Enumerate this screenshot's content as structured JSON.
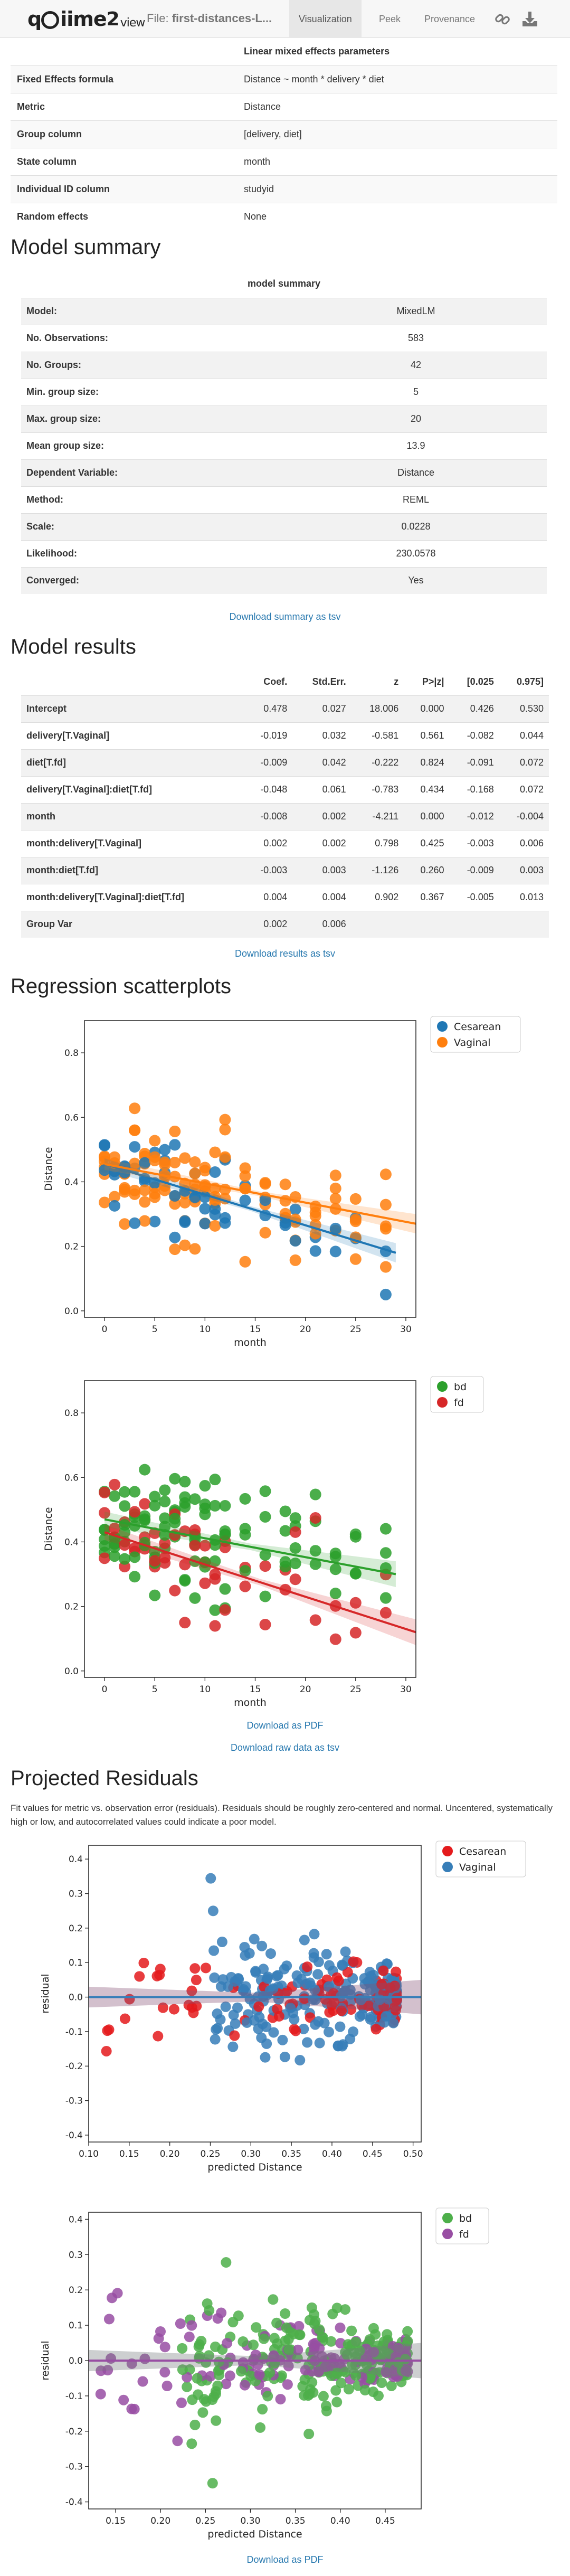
{
  "navbar": {
    "brand": "qiime2view",
    "brand_parts": [
      "q",
      "iime",
      "2",
      "view"
    ],
    "file_prefix": "File:",
    "file_name": "first-distances-L...",
    "tabs": [
      "Visualization",
      "Peek",
      "Provenance"
    ],
    "active_tab": "Visualization",
    "icons": [
      "link-icon",
      "download-icon"
    ]
  },
  "params": {
    "title": "Linear mixed effects parameters",
    "rows": [
      {
        "k": "Fixed Effects formula",
        "v": "Distance ~ month * delivery * diet"
      },
      {
        "k": "Metric",
        "v": "Distance"
      },
      {
        "k": "Group column",
        "v": "[delivery, diet]"
      },
      {
        "k": "State column",
        "v": "month"
      },
      {
        "k": "Individual ID column",
        "v": "studyid"
      },
      {
        "k": "Random effects",
        "v": "None"
      }
    ]
  },
  "summary": {
    "heading": "Model summary",
    "table_title": "model summary",
    "rows": [
      {
        "k": "Model:",
        "v": "MixedLM"
      },
      {
        "k": "No. Observations:",
        "v": "583"
      },
      {
        "k": "No. Groups:",
        "v": "42"
      },
      {
        "k": "Min. group size:",
        "v": "5"
      },
      {
        "k": "Max. group size:",
        "v": "20"
      },
      {
        "k": "Mean group size:",
        "v": "13.9"
      },
      {
        "k": "Dependent Variable:",
        "v": "Distance"
      },
      {
        "k": "Method:",
        "v": "REML"
      },
      {
        "k": "Scale:",
        "v": "0.0228"
      },
      {
        "k": "Likelihood:",
        "v": "230.0578"
      },
      {
        "k": "Converged:",
        "v": "Yes"
      }
    ],
    "download": "Download summary as tsv"
  },
  "results": {
    "heading": "Model results",
    "columns": [
      "",
      "Coef.",
      "Std.Err.",
      "z",
      "P>|z|",
      "[0.025",
      "0.975]"
    ],
    "rows": [
      [
        "Intercept",
        "0.478",
        "0.027",
        "18.006",
        "0.000",
        "0.426",
        "0.530"
      ],
      [
        "delivery[T.Vaginal]",
        "-0.019",
        "0.032",
        "-0.581",
        "0.561",
        "-0.082",
        "0.044"
      ],
      [
        "diet[T.fd]",
        "-0.009",
        "0.042",
        "-0.222",
        "0.824",
        "-0.091",
        "0.072"
      ],
      [
        "delivery[T.Vaginal]:diet[T.fd]",
        "-0.048",
        "0.061",
        "-0.783",
        "0.434",
        "-0.168",
        "0.072"
      ],
      [
        "month",
        "-0.008",
        "0.002",
        "-4.211",
        "0.000",
        "-0.012",
        "-0.004"
      ],
      [
        "month:delivery[T.Vaginal]",
        "0.002",
        "0.002",
        "0.798",
        "0.425",
        "-0.003",
        "0.006"
      ],
      [
        "month:diet[T.fd]",
        "-0.003",
        "0.003",
        "-1.126",
        "0.260",
        "-0.009",
        "0.003"
      ],
      [
        "month:delivery[T.Vaginal]:diet[T.fd]",
        "0.004",
        "0.004",
        "0.902",
        "0.367",
        "-0.005",
        "0.013"
      ],
      [
        "Group Var",
        "0.002",
        "0.006",
        "",
        "",
        "",
        ""
      ]
    ],
    "download": "Download results as tsv"
  },
  "scatter": {
    "heading": "Regression scatterplots",
    "download_pdf": "Download as PDF",
    "download_tsv": "Download raw data as tsv"
  },
  "residuals": {
    "heading": "Projected Residuals",
    "description": "Fit values for metric vs. observation error (residuals). Residuals should be roughly zero-centered and normal. Uncentered, systematically high or low, and autocorrelated values could indicate a poor model.",
    "download_pdf": "Download as PDF"
  },
  "colors": {
    "blue": "#1f77b4",
    "orange": "#ff7f0e",
    "green": "#2ca02c",
    "red": "#d62728",
    "purple": "#9467bd",
    "link": "#2a7ab0",
    "resid_red": "#e41a1c",
    "resid_blue": "#377eb8",
    "resid_green": "#4daf4a",
    "resid_purple": "#984ea3"
  },
  "chart_data": [
    {
      "type": "scatter",
      "title": "",
      "xlabel": "month",
      "ylabel": "Distance",
      "xlim": [
        -2,
        31
      ],
      "ylim": [
        -0.02,
        0.9
      ],
      "xticks": [
        "0",
        "5",
        "10",
        "15",
        "20",
        "25",
        "30"
      ],
      "yticks": [
        "0.0",
        "0.2",
        "0.4",
        "0.6",
        "0.8"
      ],
      "xtick_values": [
        0,
        5,
        10,
        15,
        20,
        25,
        30
      ],
      "ytick_values": [
        0,
        0.2,
        0.4,
        0.6,
        0.8
      ],
      "legend": [
        "Cesarean",
        "Vaginal"
      ],
      "series": [
        {
          "name": "Cesarean",
          "color": "#1f77b4",
          "fit": [
            [
              0,
              0.455
            ],
            [
              29,
              0.18
            ]
          ]
        },
        {
          "name": "Vaginal",
          "color": "#ff7f0e",
          "fit": [
            [
              0,
              0.455
            ],
            [
              31,
              0.27
            ]
          ]
        }
      ],
      "months": [
        0,
        1,
        2,
        3,
        4,
        5,
        6,
        7,
        8,
        9,
        10,
        11,
        12,
        14,
        16,
        18,
        19,
        21,
        23,
        25,
        28
      ]
    },
    {
      "type": "scatter",
      "title": "",
      "xlabel": "month",
      "ylabel": "Distance",
      "xlim": [
        -2,
        31
      ],
      "ylim": [
        -0.02,
        0.9
      ],
      "xticks": [
        "0",
        "5",
        "10",
        "15",
        "20",
        "25",
        "30"
      ],
      "yticks": [
        "0.0",
        "0.2",
        "0.4",
        "0.6",
        "0.8"
      ],
      "xtick_values": [
        0,
        5,
        10,
        15,
        20,
        25,
        30
      ],
      "ytick_values": [
        0,
        0.2,
        0.4,
        0.6,
        0.8
      ],
      "legend": [
        "bd",
        "fd"
      ],
      "series": [
        {
          "name": "bd",
          "color": "#2ca02c",
          "fit": [
            [
              0,
              0.47
            ],
            [
              29,
              0.3
            ]
          ]
        },
        {
          "name": "fd",
          "color": "#d62728",
          "fit": [
            [
              0,
              0.43
            ],
            [
              31,
              0.12
            ]
          ]
        }
      ],
      "months": [
        0,
        1,
        2,
        3,
        4,
        5,
        6,
        7,
        8,
        9,
        10,
        11,
        12,
        14,
        16,
        18,
        19,
        21,
        23,
        25,
        28
      ]
    },
    {
      "type": "scatter",
      "title": "",
      "xlabel": "predicted Distance",
      "ylabel": "residual",
      "xlim": [
        0.1,
        0.51
      ],
      "ylim": [
        -0.42,
        0.44
      ],
      "xticks": [
        "0.10",
        "0.15",
        "0.20",
        "0.25",
        "0.30",
        "0.35",
        "0.40",
        "0.45",
        "0.50"
      ],
      "yticks": [
        "-0.4",
        "-0.3",
        "-0.2",
        "-0.1",
        "0.0",
        "0.1",
        "0.2",
        "0.3",
        "0.4"
      ],
      "xtick_values": [
        0.1,
        0.15,
        0.2,
        0.25,
        0.3,
        0.35,
        0.4,
        0.45,
        0.5
      ],
      "ytick_values": [
        -0.4,
        -0.3,
        -0.2,
        -0.1,
        0,
        0.1,
        0.2,
        0.3,
        0.4
      ],
      "legend": [
        "Cesarean",
        "Vaginal"
      ],
      "series": [
        {
          "name": "Cesarean",
          "color": "#e41a1c",
          "fit": [
            [
              0.1,
              0.0
            ],
            [
              0.51,
              0.0
            ]
          ]
        },
        {
          "name": "Vaginal",
          "color": "#377eb8",
          "fit": [
            [
              0.1,
              0.0
            ],
            [
              0.51,
              0.0
            ]
          ]
        }
      ]
    },
    {
      "type": "scatter",
      "title": "",
      "xlabel": "predicted Distance",
      "ylabel": "residual",
      "xlim": [
        0.12,
        0.49
      ],
      "ylim": [
        -0.42,
        0.42
      ],
      "xticks": [
        "0.15",
        "0.20",
        "0.25",
        "0.30",
        "0.35",
        "0.40",
        "0.45"
      ],
      "yticks": [
        "-0.4",
        "-0.3",
        "-0.2",
        "-0.1",
        "0.0",
        "0.1",
        "0.2",
        "0.3",
        "0.4"
      ],
      "xtick_values": [
        0.15,
        0.2,
        0.25,
        0.3,
        0.35,
        0.4,
        0.45
      ],
      "ytick_values": [
        -0.4,
        -0.3,
        -0.2,
        -0.1,
        0,
        0.1,
        0.2,
        0.3,
        0.4
      ],
      "legend": [
        "bd",
        "fd"
      ],
      "series": [
        {
          "name": "bd",
          "color": "#4daf4a",
          "fit": [
            [
              0.12,
              0.0
            ],
            [
              0.49,
              0.0
            ]
          ]
        },
        {
          "name": "fd",
          "color": "#984ea3",
          "fit": [
            [
              0.12,
              0.0
            ],
            [
              0.49,
              0.0
            ]
          ]
        }
      ]
    }
  ]
}
